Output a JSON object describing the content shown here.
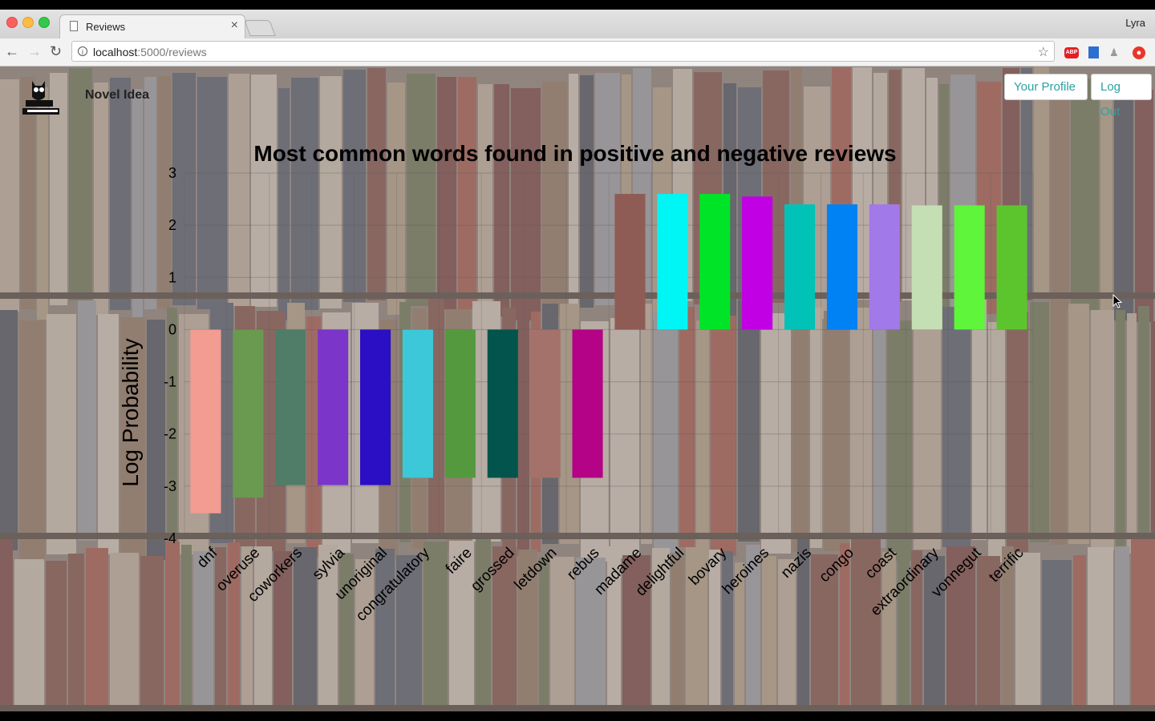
{
  "browser": {
    "tab_title": "Reviews",
    "profile_name": "Lyra",
    "url_host": "localhost",
    "url_path": ":5000/reviews",
    "extensions": {
      "abp_label": "ABP"
    }
  },
  "header": {
    "brand": "Novel Idea",
    "profile_button": "Your Profile",
    "logout_button": "Log Out"
  },
  "colors": {
    "button_text": "#2aa2a2"
  },
  "chart_data": {
    "type": "bar",
    "title": "Most common words found in positive and negative reviews",
    "xlabel": "",
    "ylabel": "Log Probability",
    "ylim": [
      -4,
      3
    ],
    "yticks": [
      3,
      2,
      1,
      0,
      -1,
      -2,
      -3,
      -4
    ],
    "grid": true,
    "categories": [
      "dnf",
      "overuse",
      "coworkers",
      "sylvia",
      "unoriginal",
      "congratulatory",
      "faire",
      "grossed",
      "letdown",
      "rebus",
      "madame",
      "delightful",
      "bovary",
      "heroines",
      "nazis",
      "congo",
      "coast",
      "extraordinary",
      "vonnegut",
      "terrific"
    ],
    "values": [
      -3.52,
      -3.22,
      -2.98,
      -2.98,
      -2.98,
      -2.84,
      -2.84,
      -2.84,
      -2.84,
      -2.84,
      2.6,
      2.6,
      2.6,
      2.55,
      2.4,
      2.4,
      2.4,
      2.38,
      2.38,
      2.38
    ],
    "colors": [
      "#f39c91",
      "#6a9a50",
      "#4f7d68",
      "#7b35c9",
      "#2a0fc4",
      "#3cc8d8",
      "#55993f",
      "#02544c",
      "#a4726a",
      "#b40386",
      "#8f5c55",
      "#00f5f5",
      "#00e428",
      "#c200e4",
      "#00c2b6",
      "#0081f4",
      "#a279e8",
      "#c5dfb4",
      "#5ef53a",
      "#5cc52e"
    ]
  }
}
